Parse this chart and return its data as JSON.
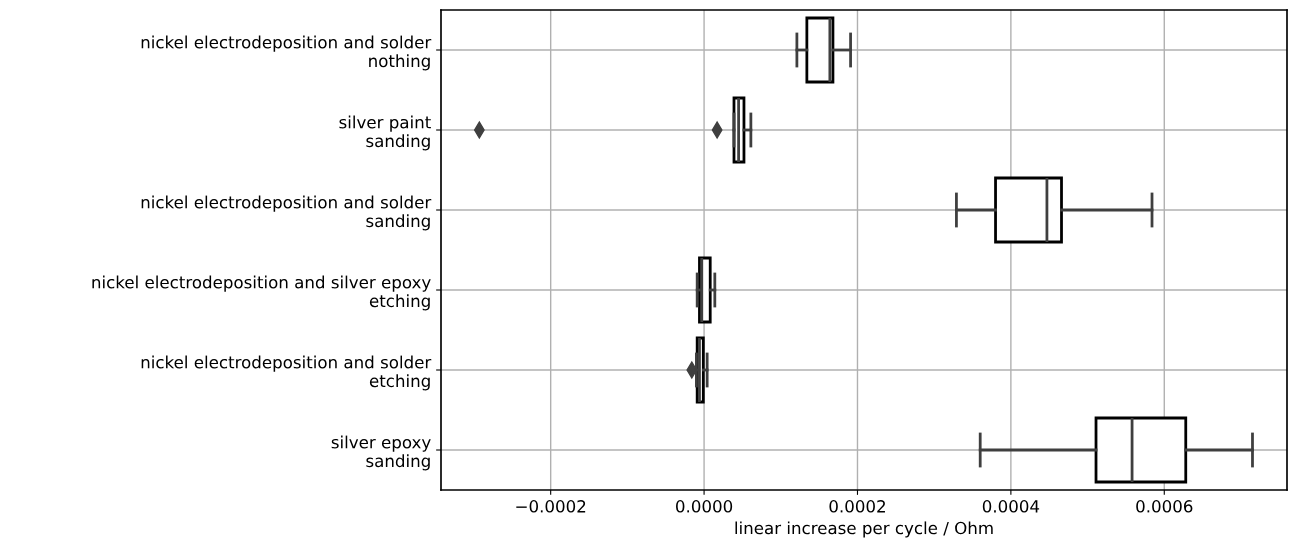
{
  "chart_data": {
    "type": "box",
    "orientation": "horizontal",
    "xlabel": "linear increase per cycle / Ohm",
    "categories": [
      "nickel electrodeposition and solder\nnothing",
      "silver paint\nsanding",
      "nickel electrodeposition and solder\nsanding",
      "nickel electrodeposition and silver epoxy\netching",
      "nickel electrodeposition and solder\netching",
      "silver epoxy\nsanding"
    ],
    "boxes": [
      {
        "low": 0.000121,
        "q1": 0.000134,
        "median": 0.000164,
        "q3": 0.000168,
        "high": 0.000191
      },
      {
        "low": 3.9e-05,
        "q1": 3.9e-05,
        "median": 4.5e-05,
        "q3": 5.2e-05,
        "high": 6.1e-05,
        "outliers": [
          -0.000293,
          1.7e-05
        ]
      },
      {
        "low": 0.000329,
        "q1": 0.00038,
        "median": 0.000447,
        "q3": 0.000466,
        "high": 0.000584
      },
      {
        "low": -9e-06,
        "q1": -6e-06,
        "median": -3e-06,
        "q3": 8e-06,
        "high": 1.4e-05
      },
      {
        "low": -1e-05,
        "q1": -9e-06,
        "median": -6e-06,
        "q3": -1e-06,
        "high": 4e-06,
        "outliers": [
          -1.6e-05
        ]
      },
      {
        "low": 0.00036,
        "q1": 0.000511,
        "median": 0.000558,
        "q3": 0.000628,
        "high": 0.000715
      }
    ],
    "color": "#ffffff",
    "xlim": [
      -0.000343,
      0.00076
    ],
    "xticks": [
      {
        "value": -0.0002,
        "label": "−0.0002"
      },
      {
        "value": 0,
        "label": "0.0000"
      },
      {
        "value": 0.0002,
        "label": "0.0002"
      },
      {
        "value": 0.0004,
        "label": "0.0004"
      },
      {
        "value": 0.0006,
        "label": "0.0006"
      }
    ],
    "grid": true
  }
}
